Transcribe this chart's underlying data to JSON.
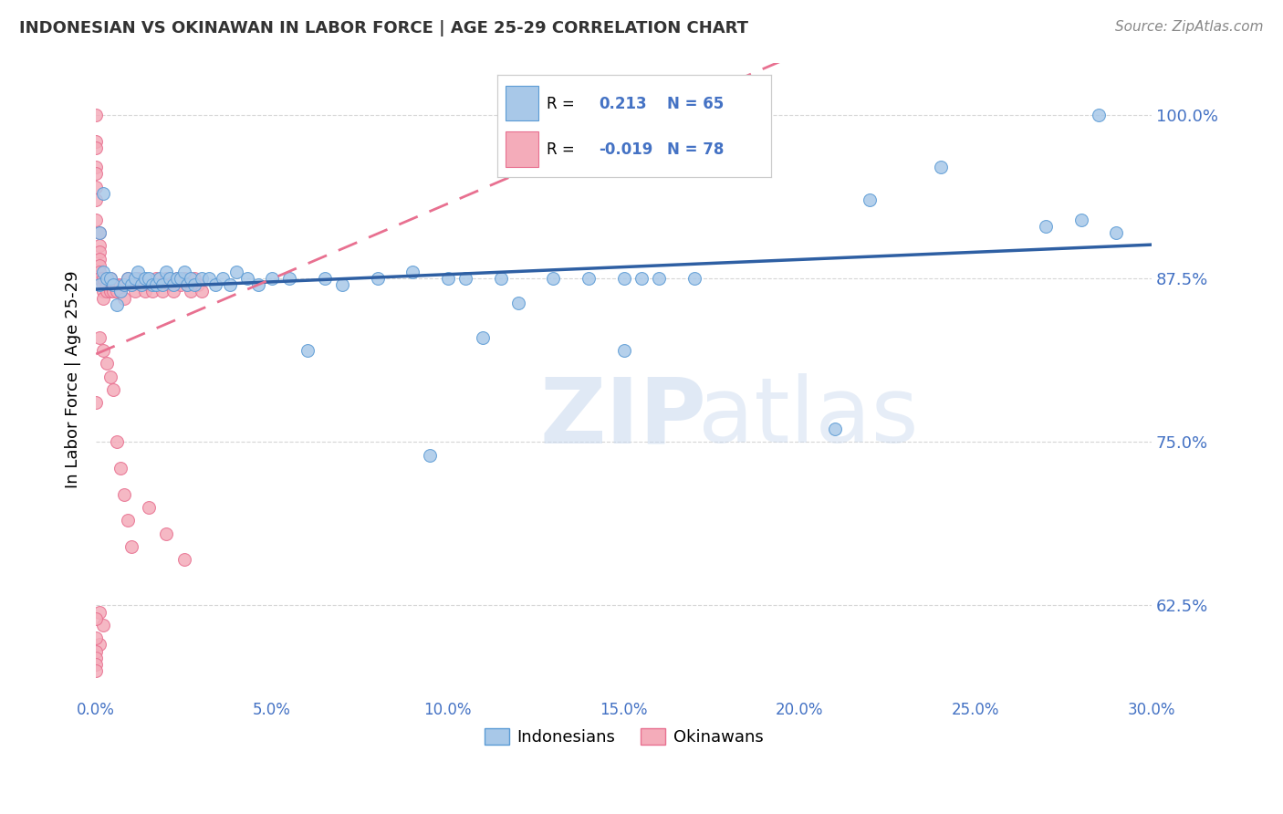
{
  "title": "INDONESIAN VS OKINAWAN IN LABOR FORCE | AGE 25-29 CORRELATION CHART",
  "source_text": "Source: ZipAtlas.com",
  "ylabel": "In Labor Force | Age 25-29",
  "xlim": [
    0.0,
    0.3
  ],
  "ylim": [
    0.555,
    1.04
  ],
  "xticks": [
    0.0,
    0.05,
    0.1,
    0.15,
    0.2,
    0.25,
    0.3
  ],
  "xticklabels": [
    "0.0%",
    "5.0%",
    "10.0%",
    "15.0%",
    "20.0%",
    "25.0%",
    "30.0%"
  ],
  "yticks": [
    0.625,
    0.75,
    0.875,
    1.0
  ],
  "yticklabels": [
    "62.5%",
    "75.0%",
    "87.5%",
    "100.0%"
  ],
  "blue_color": "#A8C8E8",
  "blue_edge_color": "#5B9BD5",
  "pink_color": "#F4ACBA",
  "pink_edge_color": "#E87090",
  "trend_blue_color": "#2E5FA3",
  "trend_pink_color": "#E87090",
  "legend_label_blue": "Indonesians",
  "legend_label_pink": "Okinawans",
  "legend_R_blue": "R =",
  "legend_val_blue": "0.213",
  "legend_N_blue": "N = 65",
  "legend_R_pink": "R =",
  "legend_val_pink": "-0.019",
  "legend_N_pink": "N = 78",
  "title_color": "#333333",
  "axis_color": "#4472C4",
  "grid_color": "#CCCCCC",
  "watermark_text": "ZIPatlas",
  "blue_x": [
    0.001,
    0.001,
    0.002,
    0.002,
    0.003,
    0.004,
    0.005,
    0.006,
    0.007,
    0.008,
    0.009,
    0.01,
    0.011,
    0.012,
    0.013,
    0.014,
    0.015,
    0.016,
    0.017,
    0.018,
    0.019,
    0.02,
    0.021,
    0.022,
    0.023,
    0.024,
    0.025,
    0.026,
    0.027,
    0.028,
    0.03,
    0.032,
    0.034,
    0.036,
    0.038,
    0.04,
    0.043,
    0.046,
    0.05,
    0.055,
    0.06,
    0.065,
    0.07,
    0.08,
    0.09,
    0.1,
    0.11,
    0.12,
    0.13,
    0.14,
    0.15,
    0.16,
    0.17,
    0.15,
    0.155,
    0.21,
    0.22,
    0.24,
    0.27,
    0.28,
    0.285,
    0.29,
    0.095,
    0.105,
    0.115
  ],
  "blue_y": [
    0.87,
    0.91,
    0.88,
    0.94,
    0.875,
    0.875,
    0.87,
    0.855,
    0.865,
    0.87,
    0.875,
    0.87,
    0.875,
    0.88,
    0.87,
    0.875,
    0.875,
    0.87,
    0.87,
    0.875,
    0.87,
    0.88,
    0.875,
    0.87,
    0.875,
    0.875,
    0.88,
    0.87,
    0.875,
    0.87,
    0.875,
    0.875,
    0.87,
    0.875,
    0.87,
    0.88,
    0.875,
    0.87,
    0.875,
    0.875,
    0.82,
    0.875,
    0.87,
    0.875,
    0.88,
    0.875,
    0.83,
    0.856,
    0.875,
    0.875,
    0.82,
    0.875,
    0.875,
    0.875,
    0.875,
    0.76,
    0.935,
    0.96,
    0.915,
    0.92,
    1.0,
    0.91,
    0.74,
    0.875,
    0.875
  ],
  "pink_x": [
    0.0,
    0.0,
    0.0,
    0.0,
    0.0,
    0.0,
    0.0,
    0.0,
    0.001,
    0.001,
    0.001,
    0.001,
    0.001,
    0.001,
    0.001,
    0.002,
    0.002,
    0.002,
    0.002,
    0.002,
    0.003,
    0.003,
    0.003,
    0.004,
    0.004,
    0.004,
    0.005,
    0.005,
    0.006,
    0.006,
    0.007,
    0.007,
    0.008,
    0.009,
    0.01,
    0.011,
    0.012,
    0.013,
    0.014,
    0.015,
    0.016,
    0.017,
    0.018,
    0.019,
    0.02,
    0.021,
    0.022,
    0.023,
    0.024,
    0.025,
    0.026,
    0.027,
    0.028,
    0.029,
    0.03,
    0.0,
    0.001,
    0.002,
    0.003,
    0.004,
    0.005,
    0.006,
    0.007,
    0.008,
    0.009,
    0.01,
    0.015,
    0.02,
    0.025,
    0.001,
    0.002,
    0.001,
    0.0,
    0.0,
    0.0,
    0.0,
    0.0,
    0.0
  ],
  "pink_y": [
    1.0,
    0.98,
    0.975,
    0.96,
    0.955,
    0.945,
    0.935,
    0.92,
    0.91,
    0.9,
    0.895,
    0.89,
    0.885,
    0.88,
    0.875,
    0.875,
    0.87,
    0.865,
    0.86,
    0.875,
    0.875,
    0.87,
    0.865,
    0.875,
    0.87,
    0.865,
    0.87,
    0.865,
    0.87,
    0.865,
    0.87,
    0.865,
    0.86,
    0.875,
    0.87,
    0.865,
    0.875,
    0.87,
    0.865,
    0.87,
    0.865,
    0.875,
    0.87,
    0.865,
    0.875,
    0.87,
    0.865,
    0.875,
    0.87,
    0.875,
    0.87,
    0.865,
    0.875,
    0.87,
    0.865,
    0.78,
    0.83,
    0.82,
    0.81,
    0.8,
    0.79,
    0.75,
    0.73,
    0.71,
    0.69,
    0.67,
    0.7,
    0.68,
    0.66,
    0.62,
    0.61,
    0.595,
    0.59,
    0.585,
    0.58,
    0.575,
    0.6,
    0.615
  ]
}
